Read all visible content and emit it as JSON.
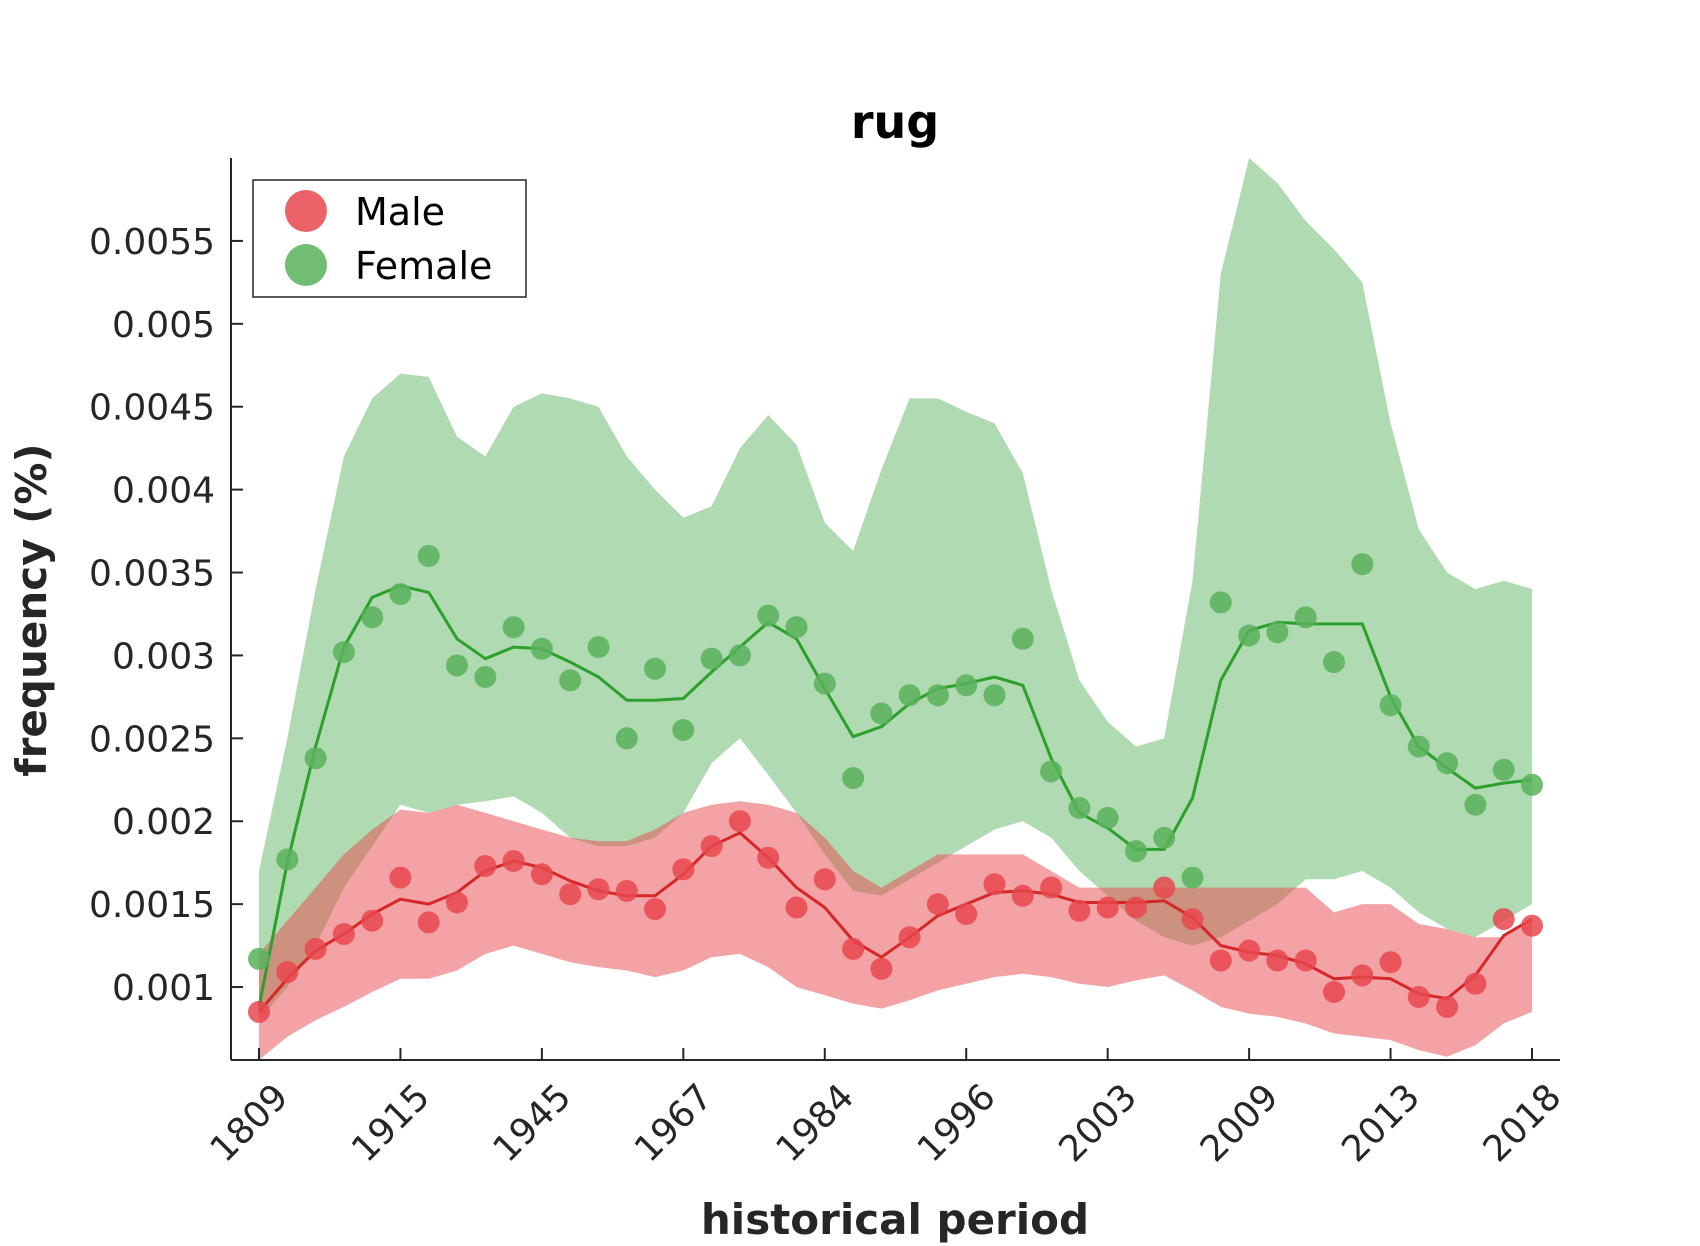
{
  "chart_data": {
    "type": "line",
    "title": "rug",
    "xlabel": "historical period",
    "ylabel": "frequency (%)",
    "ylim": [
      0.00056,
      0.006
    ],
    "yticks": [
      "0.001",
      "0.0015",
      "0.002",
      "0.0025",
      "0.003",
      "0.0035",
      "0.004",
      "0.0045",
      "0.005",
      "0.0055"
    ],
    "ytick_values": [
      0.001,
      0.0015,
      0.002,
      0.0025,
      0.003,
      0.0035,
      0.004,
      0.0045,
      0.005,
      0.0055
    ],
    "xticks": [
      "1809",
      "1915",
      "1945",
      "1967",
      "1984",
      "1996",
      "2003",
      "2009",
      "2013",
      "2018"
    ],
    "xtick_index": [
      0,
      5,
      10,
      15,
      20,
      25,
      30,
      35,
      40,
      45
    ],
    "n_points": 46,
    "legend_position": "top-left",
    "grid": false,
    "series": [
      {
        "name": "Male",
        "color": "#e8474d",
        "line_color": "#d62728",
        "points": [
          0.00085,
          0.00109,
          0.00123,
          0.00132,
          0.0014,
          0.00166,
          0.00139,
          0.00151,
          0.00173,
          0.00176,
          0.00168,
          0.00156,
          0.00159,
          0.00158,
          0.00147,
          0.00171,
          0.00185,
          0.002,
          0.00178,
          0.00148,
          0.00165,
          0.00123,
          0.00111,
          0.0013,
          0.0015,
          0.00144,
          0.00162,
          0.00155,
          0.0016,
          0.00146,
          0.00148,
          0.00148,
          0.0016,
          0.00141,
          0.00116,
          0.00122,
          0.00116,
          0.00116,
          0.00097,
          0.00107,
          0.00115,
          0.00094,
          0.00088,
          0.00102,
          0.00141,
          0.00137
        ],
        "trend": [
          0.00085,
          0.00105,
          0.00122,
          0.00132,
          0.00144,
          0.00153,
          0.0015,
          0.00157,
          0.0017,
          0.00176,
          0.00172,
          0.00164,
          0.00158,
          0.00155,
          0.00155,
          0.00168,
          0.00185,
          0.00193,
          0.00178,
          0.0016,
          0.00148,
          0.00128,
          0.00118,
          0.0013,
          0.00143,
          0.0015,
          0.00157,
          0.00158,
          0.00156,
          0.00151,
          0.00151,
          0.00151,
          0.00152,
          0.00142,
          0.00125,
          0.00121,
          0.00119,
          0.00114,
          0.00105,
          0.00106,
          0.00105,
          0.00096,
          0.00093,
          0.00107,
          0.00131,
          0.00141
        ],
        "band_upper": [
          0.0012,
          0.0014,
          0.0016,
          0.0018,
          0.00195,
          0.00207,
          0.00205,
          0.0021,
          0.00205,
          0.002,
          0.00195,
          0.0019,
          0.00188,
          0.00188,
          0.00195,
          0.00205,
          0.0021,
          0.00212,
          0.0021,
          0.00205,
          0.0019,
          0.0017,
          0.0016,
          0.0017,
          0.0018,
          0.0018,
          0.0018,
          0.0018,
          0.0017,
          0.0016,
          0.0016,
          0.0016,
          0.0016,
          0.0016,
          0.0016,
          0.0016,
          0.0016,
          0.0016,
          0.00145,
          0.0015,
          0.0015,
          0.00138,
          0.00135,
          0.0013,
          0.0013,
          0.0014
        ],
        "band_lower": [
          0.00056,
          0.0007,
          0.0008,
          0.00088,
          0.00097,
          0.00105,
          0.00105,
          0.0011,
          0.0012,
          0.00125,
          0.0012,
          0.00115,
          0.00112,
          0.0011,
          0.00106,
          0.0011,
          0.00118,
          0.0012,
          0.00112,
          0.001,
          0.00095,
          0.0009,
          0.00087,
          0.00092,
          0.00098,
          0.00102,
          0.00106,
          0.00108,
          0.00106,
          0.00102,
          0.001,
          0.00104,
          0.00107,
          0.00098,
          0.00088,
          0.00084,
          0.00082,
          0.00078,
          0.00072,
          0.0007,
          0.00068,
          0.00062,
          0.00058,
          0.00065,
          0.00078,
          0.00085
        ]
      },
      {
        "name": "Female",
        "color": "#59b25c",
        "line_color": "#2ca02c",
        "points": [
          0.00117,
          0.00177,
          0.00238,
          0.00302,
          0.00323,
          0.00337,
          0.0036,
          0.00294,
          0.00287,
          0.00317,
          0.00304,
          0.00285,
          0.00305,
          0.0025,
          0.00292,
          0.00255,
          0.00298,
          0.003,
          0.00324,
          0.00317,
          0.00283,
          0.00226,
          0.00265,
          0.00276,
          0.00276,
          0.00282,
          0.00276,
          0.0031,
          0.0023,
          0.00208,
          0.00202,
          0.00182,
          0.0019,
          0.00166,
          0.00332,
          0.00312,
          0.00314,
          0.00323,
          0.00296,
          0.00355,
          0.0027,
          0.00245,
          0.00235,
          0.0021,
          0.00231,
          0.00222
        ],
        "trend": [
          0.00088,
          0.00175,
          0.00245,
          0.00305,
          0.00335,
          0.00342,
          0.00338,
          0.0031,
          0.00298,
          0.00305,
          0.00304,
          0.00296,
          0.00287,
          0.00273,
          0.00273,
          0.00274,
          0.0029,
          0.00305,
          0.0032,
          0.0031,
          0.0028,
          0.00251,
          0.00257,
          0.00271,
          0.0028,
          0.00283,
          0.00287,
          0.00282,
          0.00238,
          0.00205,
          0.00196,
          0.00183,
          0.00183,
          0.00214,
          0.00285,
          0.00315,
          0.0032,
          0.00319,
          0.00319,
          0.00319,
          0.00275,
          0.00245,
          0.00232,
          0.0022,
          0.00223,
          0.00225
        ],
        "band_upper": [
          0.0017,
          0.0025,
          0.0034,
          0.0042,
          0.00455,
          0.0047,
          0.00468,
          0.00432,
          0.0042,
          0.0045,
          0.00458,
          0.00455,
          0.0045,
          0.0042,
          0.004,
          0.00383,
          0.0039,
          0.00425,
          0.00445,
          0.00427,
          0.0038,
          0.00363,
          0.00412,
          0.00455,
          0.00455,
          0.00447,
          0.0044,
          0.0041,
          0.0034,
          0.00285,
          0.0026,
          0.00245,
          0.0025,
          0.00345,
          0.0053,
          0.006,
          0.00585,
          0.00562,
          0.00545,
          0.00525,
          0.0044,
          0.00376,
          0.0035,
          0.0034,
          0.00345,
          0.0034
        ],
        "band_lower": [
          0.0008,
          0.001,
          0.00125,
          0.0016,
          0.00185,
          0.0021,
          0.00205,
          0.0021,
          0.00212,
          0.00215,
          0.00205,
          0.0019,
          0.00185,
          0.00185,
          0.0019,
          0.00205,
          0.00235,
          0.0025,
          0.00228,
          0.00205,
          0.0018,
          0.00158,
          0.00155,
          0.00165,
          0.00175,
          0.00185,
          0.00195,
          0.002,
          0.0019,
          0.0017,
          0.00155,
          0.0014,
          0.0013,
          0.00125,
          0.0013,
          0.0014,
          0.0015,
          0.00165,
          0.00165,
          0.0017,
          0.0016,
          0.00145,
          0.00135,
          0.0013,
          0.0014,
          0.0015
        ]
      }
    ]
  }
}
